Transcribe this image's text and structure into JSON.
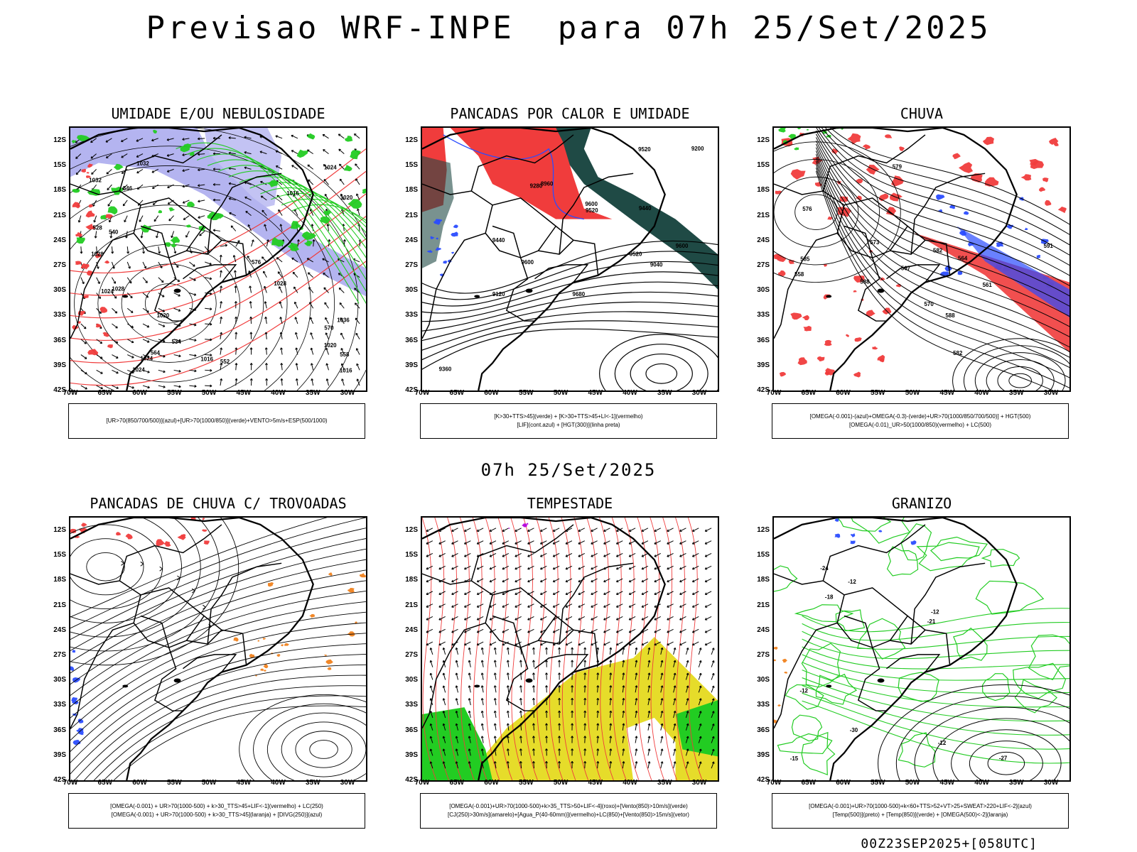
{
  "header": {
    "title": "Previsao WRF-INPE  para 07h 25/Set/2025",
    "subtitle": "07h 25/Set/2025",
    "footer": "00Z23SEP2025+[058UTC]"
  },
  "axes": {
    "lat_ticks": [
      "12S",
      "15S",
      "18S",
      "21S",
      "24S",
      "27S",
      "30S",
      "33S",
      "36S",
      "39S",
      "42S"
    ],
    "lon_ticks": [
      "70W",
      "65W",
      "60W",
      "55W",
      "50W",
      "45W",
      "40W",
      "35W",
      "30W"
    ]
  },
  "colors": {
    "red": "#f03c3c",
    "green": "#22cc22",
    "blue": "#2a4cff",
    "lavender": "#b4b4f0",
    "dark_teal": "#1f4a45",
    "yellow": "#e6dc2a",
    "orange": "#f0821e",
    "purple": "#b400dc",
    "black": "#000000"
  },
  "panels": [
    {
      "title": "UMIDADE E/OU NEBULOSIDADE",
      "legend_lines": [
        "[UR>70(850/700/500)](azul)+[UR>70(1000/850)](verde)+VENTO>5m/s+ESP(500/1000)"
      ],
      "contour_labels": [
        "1016",
        "1016",
        "1016",
        "1020",
        "1020",
        "1020",
        "1024",
        "1024",
        "1024",
        "1024",
        "1028",
        "1028",
        "1028",
        "1032",
        "1032",
        "1036",
        "570",
        "564",
        "558",
        "552",
        "546",
        "540",
        "534",
        "528",
        "576"
      ]
    },
    {
      "title": "PANCADAS POR CALOR E UMIDADE",
      "legend_lines": [
        "[K>30+TTS>45](verde) + [K>30+TTS>45+LI<-1](vermelho)",
        "[LIF](cont.azul) + [HGT(300)](linha preta)"
      ],
      "contour_labels": [
        "9600",
        "9600",
        "9600",
        "9520",
        "9520",
        "9520",
        "9440",
        "9440",
        "9360",
        "9280",
        "9200",
        "9120",
        "9040",
        "8960",
        "9680"
      ]
    },
    {
      "title": "CHUVA",
      "legend_lines": [
        "[OMEGA(-0.001)-(azul)+OMEGA(-0.3)-(verde)+UR>70(1000/850/700/500)] + HGT(500)",
        "[OMEGA(-0.01)_UR>50(1000/850)(vermelho) + LC(500)"
      ],
      "contour_labels": [
        "588",
        "588",
        "585",
        "582",
        "582",
        "579",
        "576",
        "573",
        "570",
        "567",
        "564",
        "561",
        "558",
        "591"
      ]
    },
    {
      "title": "PANCADAS DE CHUVA C/ TROVOADAS",
      "legend_lines": [
        "[OMEGA(-0.001) + UR>70(1000-500) + k>30_TTS>45+LIF<-1](vermelho) + LC(250)",
        "[OMEGA(-0.001) + UR>70(1000-500) + k>30_TTS>45](laranja) + [DIVG(250)](azul)"
      ],
      "contour_labels": []
    },
    {
      "title": "TEMPESTADE",
      "legend_lines": [
        "[OMEGA(-0.001)+UR>70(1000-500)+k>35_TTS>50+LIF<-4](roxo)+[Vento(850)>10m/s](verde)",
        "[CJ(250)>30m/s](amarelo)+[Agua_P(40-60mm)](vermelho)+LC(850)+[Vento(850)>15m/s](vetor)"
      ],
      "contour_labels": []
    },
    {
      "title": "GRANIZO",
      "legend_lines": [
        "[OMEGA(-0.001)+UR>70(1000-500)+k<60+TTS>52+VT>25+SWEAT>220+LIF<-2](azul)",
        "[Temp(500)](preto) + [Temp(850)](verde) + [OMEGA(500)<-2](laranja)"
      ],
      "contour_labels": [
        "-12",
        "-12",
        "-12",
        "-15",
        "-18",
        "-21",
        "-24",
        "-27",
        "-30",
        "-12"
      ]
    }
  ]
}
